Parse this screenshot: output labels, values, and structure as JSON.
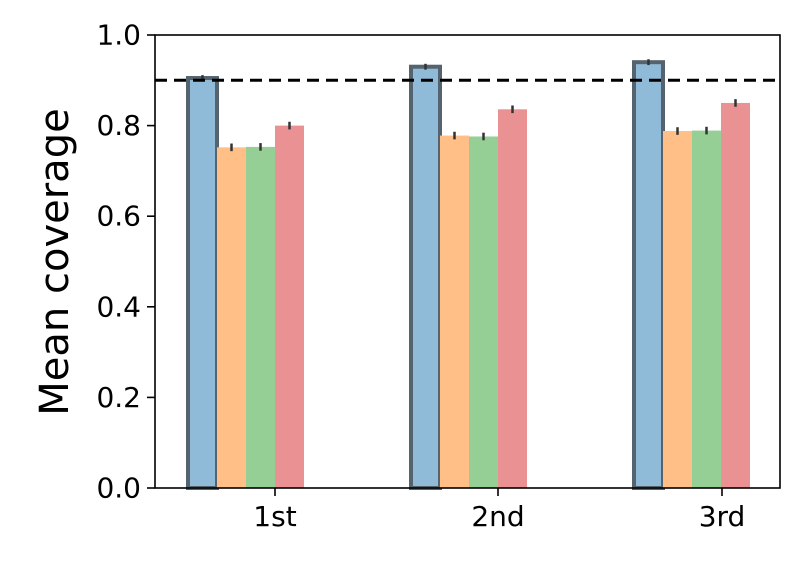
{
  "chart_data": {
    "type": "bar",
    "categories": [
      "1st",
      "2nd",
      "3rd"
    ],
    "ylabel": "Mean coverage",
    "xlabel": "",
    "title": "",
    "ylim": [
      0,
      1.0
    ],
    "yticks": [
      "0.0",
      "0.2",
      "0.4",
      "0.6",
      "0.8",
      "1.0"
    ],
    "reference_line": 0.9,
    "grid": false,
    "legend": "none",
    "series": [
      {
        "color": "#8fbbd9",
        "highlight": true,
        "values": [
          0.905,
          0.93,
          0.94
        ],
        "errors": [
          0.002,
          0.002,
          0.002
        ]
      },
      {
        "color": "#ffbf86",
        "values": [
          0.752,
          0.778,
          0.788
        ],
        "errors": [
          0.004,
          0.004,
          0.004
        ]
      },
      {
        "color": "#95cf95",
        "values": [
          0.753,
          0.776,
          0.789
        ],
        "errors": [
          0.004,
          0.004,
          0.004
        ]
      },
      {
        "color": "#ea9293",
        "values": [
          0.8,
          0.836,
          0.85
        ],
        "errors": [
          0.004,
          0.004,
          0.004
        ]
      }
    ]
  }
}
